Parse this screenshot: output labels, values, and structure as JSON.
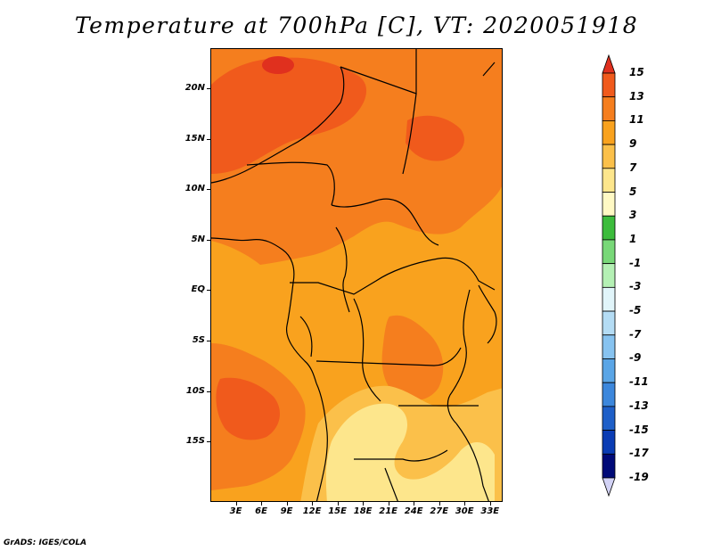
{
  "title": "Temperature at 700hPa [C], VT: 2020051918",
  "credit": "GrADS: IGES/COLA",
  "map": {
    "lat_range": [
      -21,
      24
    ],
    "lon_range": [
      0,
      34.5
    ],
    "lat_ticks": [
      {
        "value": 20,
        "label": "20N"
      },
      {
        "value": 15,
        "label": "15N"
      },
      {
        "value": 10,
        "label": "10N"
      },
      {
        "value": 5,
        "label": "5N"
      },
      {
        "value": 0,
        "label": "EQ"
      },
      {
        "value": -5,
        "label": "5S"
      },
      {
        "value": -10,
        "label": "10S"
      },
      {
        "value": -15,
        "label": "15S"
      }
    ],
    "lon_ticks": [
      {
        "value": 3,
        "label": "3E"
      },
      {
        "value": 6,
        "label": "6E"
      },
      {
        "value": 9,
        "label": "9E"
      },
      {
        "value": 12,
        "label": "12E"
      },
      {
        "value": 15,
        "label": "15E"
      },
      {
        "value": 18,
        "label": "18E"
      },
      {
        "value": 21,
        "label": "21E"
      },
      {
        "value": 24,
        "label": "24E"
      },
      {
        "value": 27,
        "label": "27E"
      },
      {
        "value": 30,
        "label": "30E"
      },
      {
        "value": 33,
        "label": "33E"
      }
    ]
  },
  "colorbar": {
    "levels": [
      "15",
      "13",
      "11",
      "9",
      "7",
      "5",
      "3",
      "1",
      "-1",
      "-3",
      "-5",
      "-7",
      "-9",
      "-11",
      "-13",
      "-15",
      "-17",
      "-19"
    ],
    "colors": [
      "#e0301e",
      "#f05a1c",
      "#f57e1e",
      "#f9a21e",
      "#fbc04a",
      "#fde68c",
      "#fff9c4",
      "#3cbc3c",
      "#78d878",
      "#b4f0b4",
      "#e1f5fa",
      "#b4dcf4",
      "#87c3f0",
      "#5aa5e6",
      "#3c87dc",
      "#1e5fc8",
      "#0a3cb4",
      "#000a78",
      "#d2d2f5"
    ]
  }
}
